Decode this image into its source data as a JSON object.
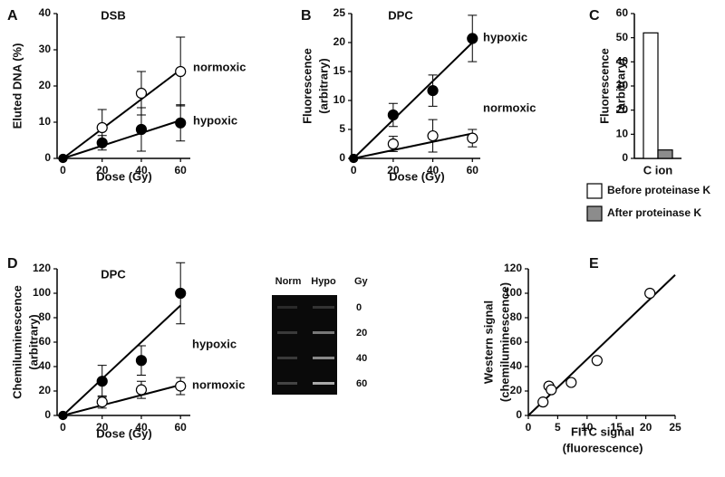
{
  "chart_data": [
    {
      "type": "line",
      "panel": "A",
      "title": "DSB",
      "ylabel": [
        "Eluted DNA (%)"
      ],
      "xlabel": [
        "Dose (Gy)"
      ],
      "x": [
        0,
        20,
        40,
        60
      ],
      "xlim": [
        -3,
        65
      ],
      "xticks": [
        0,
        20,
        40,
        60
      ],
      "ylim": [
        0,
        40
      ],
      "yticks": [
        0,
        10,
        20,
        30,
        40
      ],
      "fit_x": [
        0,
        60
      ],
      "series": [
        {
          "name": "normoxic",
          "color": "#ffffff",
          "values": [
            0,
            8.5,
            18,
            24
          ],
          "errors": [
            0,
            5,
            6,
            9.5
          ],
          "fit": [
            0,
            24.5
          ]
        },
        {
          "name": "hypoxic",
          "color": "#000000",
          "values": [
            0,
            4.3,
            8,
            9.8
          ],
          "errors": [
            0,
            2,
            6,
            5
          ],
          "fit": [
            0,
            10.5
          ]
        }
      ]
    },
    {
      "type": "line",
      "panel": "B",
      "title": "DPC",
      "ylabel": [
        "Fluorescence",
        "(arbitrary)"
      ],
      "xlabel": [
        "Dose (Gy)"
      ],
      "x": [
        0,
        20,
        40,
        60
      ],
      "xlim": [
        -1,
        64
      ],
      "xticks": [
        0,
        20,
        40,
        60
      ],
      "ylim": [
        0,
        25
      ],
      "yticks": [
        0,
        5,
        10,
        15,
        20,
        25
      ],
      "fit_x": [
        0,
        60
      ],
      "series": [
        {
          "name": "hypoxic",
          "color": "#000000",
          "values": [
            0,
            7.5,
            11.7,
            20.7
          ],
          "errors": [
            0,
            2,
            2.7,
            4
          ],
          "fit": [
            0,
            20
          ]
        },
        {
          "name": "normoxic",
          "color": "#ffffff",
          "values": [
            0,
            2.5,
            3.9,
            3.5
          ],
          "errors": [
            0,
            1.3,
            2.8,
            1.5
          ],
          "fit": [
            0,
            4.3
          ]
        }
      ]
    },
    {
      "type": "bar",
      "panel": "C",
      "ylabel": [
        "Fluorescence",
        "(arbitrary)"
      ],
      "categories": [
        "C ion"
      ],
      "ylim": [
        0,
        60
      ],
      "yticks": [
        0,
        10,
        20,
        30,
        40,
        50,
        60
      ],
      "series": [
        {
          "name": "Before proteinase K",
          "color": "#ffffff",
          "values": [
            52
          ]
        },
        {
          "name": "After proteinase K",
          "color": "#8c8c8c",
          "values": [
            3.5
          ]
        }
      ]
    },
    {
      "type": "line",
      "panel": "D",
      "title": "DPC",
      "ylabel": [
        "Chemiluminescence",
        "(arbitrary)"
      ],
      "xlabel": [
        "Dose (Gy)"
      ],
      "x": [
        0,
        20,
        40,
        60
      ],
      "xlim": [
        -3,
        65
      ],
      "xticks": [
        0,
        20,
        40,
        60
      ],
      "ylim": [
        0,
        120
      ],
      "yticks": [
        0,
        20,
        40,
        60,
        80,
        100,
        120
      ],
      "fit_x": [
        0,
        60
      ],
      "series": [
        {
          "name": "hypoxic",
          "color": "#000000",
          "values": [
            0,
            28,
            45,
            100
          ],
          "errors": [
            0,
            13,
            12,
            25
          ],
          "fit": [
            0,
            90
          ]
        },
        {
          "name": "normoxic",
          "color": "#ffffff",
          "values": [
            0,
            11,
            21,
            24
          ],
          "errors": [
            0,
            5,
            7,
            7
          ],
          "fit": [
            0,
            25
          ]
        }
      ]
    },
    {
      "type": "scatter",
      "panel": "E",
      "ylabel": [
        "Western signal",
        "(chemiluminescence)"
      ],
      "xlabel": [
        "FITC signal",
        "(fluorescence)"
      ],
      "xlim": [
        0,
        25
      ],
      "xticks": [
        0,
        5,
        10,
        15,
        20,
        25
      ],
      "ylim": [
        0,
        120
      ],
      "yticks": [
        0,
        20,
        40,
        60,
        80,
        100,
        120
      ],
      "x": [
        2.5,
        3.5,
        3.9,
        7.3,
        11.7,
        20.7
      ],
      "values": [
        11,
        24,
        21,
        27,
        45,
        100
      ],
      "fit_x": [
        0,
        25
      ],
      "fit": [
        0,
        115
      ]
    }
  ],
  "gel": {
    "lanes": [
      "Norm",
      "Hypo"
    ],
    "unit": "Gy",
    "doses": [
      0,
      20,
      40,
      60
    ]
  }
}
